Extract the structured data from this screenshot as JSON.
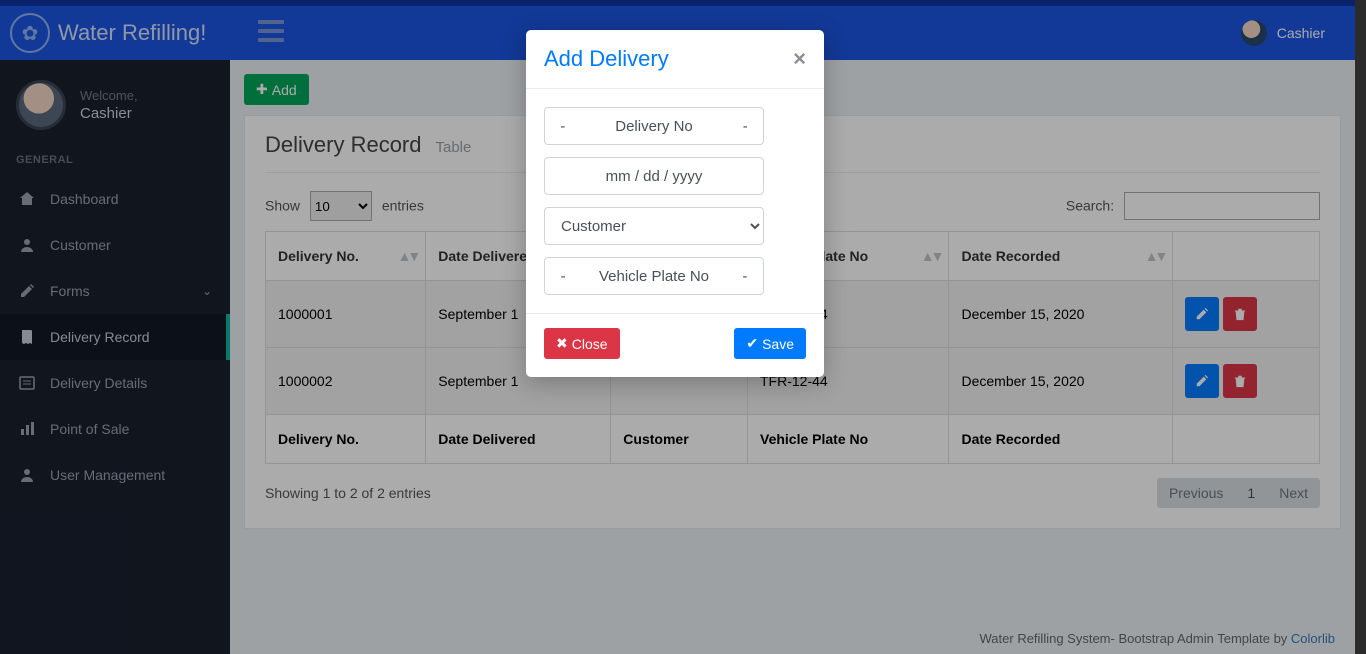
{
  "colors": {
    "header_bg": "#1b55e2",
    "header_border_top": "#1033a0",
    "sidebar_bg": "#1a202e",
    "sidebar_active_bg": "#131824",
    "sidebar_active_bar": "#0cb5a3",
    "content_bg": "#ecf0f5",
    "btn_green": "#00a65a",
    "btn_blue": "#007bff",
    "btn_red": "#dc3545",
    "link": "#337ab7"
  },
  "header": {
    "brand": "Water Refilling!",
    "user_name": "Cashier"
  },
  "sidebar": {
    "welcome": "Welcome,",
    "role": "Cashier",
    "section": "GENERAL",
    "items": [
      {
        "icon": "home",
        "label": "Dashboard"
      },
      {
        "icon": "user",
        "label": "Customer"
      },
      {
        "icon": "edit",
        "label": "Forms",
        "chevron": true
      },
      {
        "icon": "book",
        "label": "Delivery Record",
        "active": true
      },
      {
        "icon": "list",
        "label": "Delivery Details"
      },
      {
        "icon": "chart",
        "label": "Point of Sale"
      },
      {
        "icon": "user",
        "label": "User Management"
      }
    ]
  },
  "toolbar": {
    "add_label": "Add"
  },
  "card": {
    "title": "Delivery Record",
    "subtitle": "Table"
  },
  "datatable": {
    "length_prefix": "Show",
    "length_suffix": "entries",
    "length_value": "10",
    "search_label": "Search:",
    "columns": [
      "Delivery No.",
      "Date Delivered",
      "Customer",
      "Vehicle Plate No",
      "Date Recorded",
      ""
    ],
    "rows": [
      {
        "no": "1000001",
        "date_delivered": "September 1",
        "customer": "",
        "plate": "TFR-12-44",
        "recorded": "December 15, 2020"
      },
      {
        "no": "1000002",
        "date_delivered": "September 1",
        "customer": "",
        "plate": "TFR-12-44",
        "recorded": "December 15, 2020"
      }
    ],
    "foot": [
      "Delivery No.",
      "Date Delivered",
      "Customer",
      "Vehicle Plate No",
      "Date Recorded",
      ""
    ],
    "info": "Showing 1 to 2 of 2 entries",
    "pager": {
      "prev": "Previous",
      "page": "1",
      "next": "Next"
    }
  },
  "footer": {
    "text": "Water Refilling System- Bootstrap Admin Template by ",
    "link": "Colorlib"
  },
  "modal": {
    "title": "Add Delivery",
    "delivery_no_placeholder": "-            Delivery No            -",
    "date_placeholder": "mm / dd / yyyy",
    "customer_option": "Customer",
    "plate_placeholder": "-        Vehicle Plate No        -",
    "close_label": "Close",
    "save_label": "Save"
  }
}
